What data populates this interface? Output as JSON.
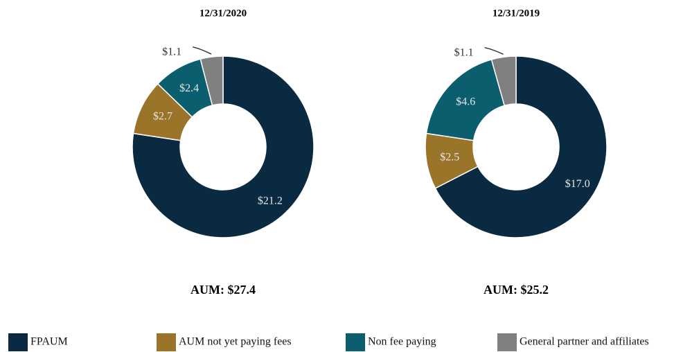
{
  "chart_data": [
    {
      "type": "pie",
      "title": "12/31/2020",
      "categories": [
        "FPAUM",
        "AUM not yet paying fees",
        "Non fee paying",
        "General partner and affiliates"
      ],
      "values": [
        21.2,
        2.7,
        2.4,
        1.1
      ],
      "value_labels": [
        "$21.2",
        "$2.7",
        "$2.4",
        "$1.1"
      ],
      "colors": [
        "#0a2a42",
        "#9a7429",
        "#0b5e6e",
        "#808080"
      ],
      "total_label": "AUM: $27.4"
    },
    {
      "type": "pie",
      "title": "12/31/2019",
      "categories": [
        "FPAUM",
        "AUM not yet paying fees",
        "Non fee paying",
        "General partner and affiliates"
      ],
      "values": [
        17.0,
        2.5,
        4.6,
        1.1
      ],
      "value_labels": [
        "$17.0",
        "$2.5",
        "$4.6",
        "$1.1"
      ],
      "colors": [
        "#0a2a42",
        "#9a7429",
        "#0b5e6e",
        "#808080"
      ],
      "total_label": "AUM: $25.2"
    }
  ]
}
